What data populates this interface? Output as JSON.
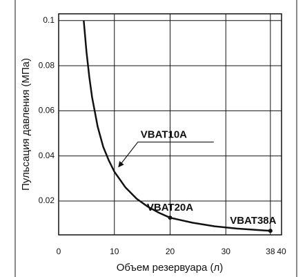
{
  "chart_data": {
    "type": "line",
    "x_label": "Объем резервуара (л)",
    "y_label": "Пульсация давления (МПа)",
    "x": [
      4.5,
      5,
      5.5,
      6,
      7,
      8,
      9,
      10,
      12,
      14,
      16,
      18,
      20,
      24,
      28,
      32,
      36,
      38
    ],
    "series": [
      {
        "color": "#111111",
        "values": [
          0.1,
          0.086,
          0.075,
          0.066,
          0.053,
          0.044,
          0.038,
          0.033,
          0.026,
          0.021,
          0.0175,
          0.0148,
          0.0126,
          0.0104,
          0.0088,
          0.0078,
          0.0071,
          0.0068
        ]
      }
    ],
    "xlim": [
      0,
      40
    ],
    "xticks": [
      0,
      10,
      20,
      30,
      38,
      40
    ],
    "ylim": [
      0.005,
      0.103
    ],
    "yticks": [
      0.02,
      0.04,
      0.06,
      0.08,
      0.1
    ],
    "grid": true,
    "annotations": [
      {
        "text": "VBAT10A",
        "x": 10.5,
        "y": 0.0345,
        "marker": false
      },
      {
        "text": "VBAT20A",
        "x": 20,
        "y": 0.0126,
        "marker": true
      },
      {
        "text": "VBAT38A",
        "x": 38,
        "y": 0.0068,
        "marker": true
      }
    ]
  }
}
